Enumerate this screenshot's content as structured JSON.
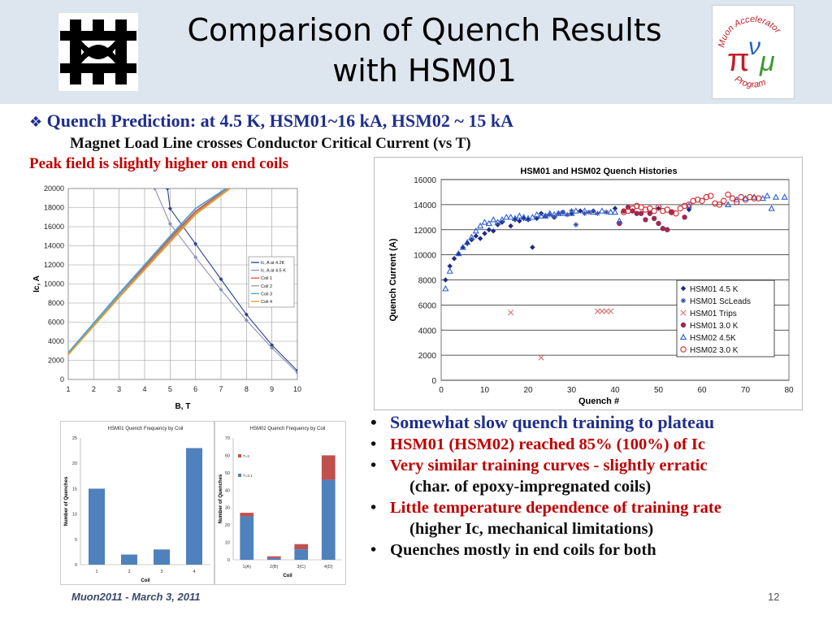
{
  "slide": {
    "title_line1": "Comparison of Quench Results",
    "title_line2": "with HSM01",
    "logo_right_text": {
      "top": "Muon Accelerator",
      "bottom": "Program",
      "pi": "π",
      "mu": "μ",
      "nu": "ν"
    },
    "bullet_main": "Quench Prediction: at 4.5 K, HSM01~16 kA, HSM02 ~ 15 kA",
    "bullet_sub": "Magnet Load Line crosses Conductor Critical Current (vs T)",
    "peak_note": "Peak field is slightly higher on end coils",
    "footer_left": "Muon2011  -  March 3, 2011",
    "page_number": "12",
    "bullets": [
      {
        "text": "Somewhat slow quench training to plateau",
        "color": "#1f2f8c",
        "indent": false
      },
      {
        "text": "HSM01 (HSM02) reached 85% (100%) of Ic",
        "color": "#c00000",
        "indent": false
      },
      {
        "text": "Very similar training curves - slightly erratic",
        "color": "#c00000",
        "indent": false
      },
      {
        "text": "(char. of epoxy-impregnated coils)",
        "color": "#111111",
        "indent": true
      },
      {
        "text": "Little temperature dependence of training rate",
        "color": "#c00000",
        "indent": false
      },
      {
        "text": "(higher Ic, mechanical limitations)",
        "color": "#111111",
        "indent": true
      },
      {
        "text": "Quenches mostly in end coils for both",
        "color": "#111111",
        "indent": false
      }
    ]
  },
  "chart_data": [
    {
      "type": "line",
      "title": "",
      "xlabel": "B, T",
      "ylabel": "Ic, A",
      "xlim": [
        1,
        10
      ],
      "ylim": [
        0,
        20000
      ],
      "xticks": [
        "1",
        "2",
        "3",
        "4",
        "5",
        "6",
        "7",
        "8",
        "9",
        "10"
      ],
      "yticks": [
        "0",
        "2000",
        "4000",
        "6000",
        "8000",
        "10000",
        "12000",
        "14000",
        "16000",
        "18000",
        "20000"
      ],
      "grid": true,
      "legend_position": "right",
      "series": [
        {
          "name": "Ic, A at 4.2K",
          "color": "#2b3f8f",
          "x": [
            4.9,
            5.0,
            6.0,
            7.0,
            8.0,
            9.0,
            10.0
          ],
          "y": [
            20000,
            17900,
            14200,
            10500,
            6800,
            3600,
            900
          ]
        },
        {
          "name": "Ic, A at 4.5 K",
          "color": "#8b8fb8",
          "x": [
            4.4,
            5.0,
            6.0,
            7.0,
            8.0,
            9.0,
            10.0
          ],
          "y": [
            20000,
            16300,
            12800,
            9400,
            6200,
            3300,
            700
          ]
        },
        {
          "name": "Coil 1",
          "color": "#e2502b",
          "x": [
            1,
            2,
            3,
            4,
            5,
            6,
            7.25
          ],
          "y": [
            2700,
            5800,
            8900,
            11800,
            14800,
            17600,
            20000
          ]
        },
        {
          "name": "Coil 2",
          "color": "#9a9a9a",
          "x": [
            1,
            2,
            3,
            4,
            5,
            6,
            7.3
          ],
          "y": [
            2700,
            5700,
            8800,
            11600,
            14600,
            17400,
            20000
          ]
        },
        {
          "name": "Coil 3",
          "color": "#4aa3d8",
          "x": [
            1,
            2,
            3,
            4,
            5,
            6,
            7.2
          ],
          "y": [
            2800,
            5900,
            9000,
            12000,
            15000,
            17900,
            20000
          ]
        },
        {
          "name": "Coil 4",
          "color": "#e49a2b",
          "x": [
            1,
            2,
            3,
            4,
            5,
            6,
            7.35
          ],
          "y": [
            2600,
            5600,
            8600,
            11500,
            14400,
            17300,
            20000
          ]
        }
      ]
    },
    {
      "type": "scatter",
      "title": "HSM01 and HSM02 Quench Histories",
      "xlabel": "Quench #",
      "ylabel": "Quench Current (A)",
      "xlim": [
        0,
        80
      ],
      "ylim": [
        0,
        16000
      ],
      "xticks": [
        "0",
        "10",
        "20",
        "30",
        "40",
        "50",
        "60",
        "70",
        "80"
      ],
      "yticks": [
        "0",
        "2000",
        "4000",
        "6000",
        "8000",
        "10000",
        "12000",
        "14000",
        "16000"
      ],
      "grid": true,
      "legend_position": "bottom-right",
      "series": [
        {
          "name": "HSM01 4.5 K",
          "color": "#1f2a80",
          "marker": "diamond",
          "x": [
            1,
            2,
            3,
            4,
            5,
            6,
            7,
            8,
            9,
            10,
            11,
            12,
            13,
            14,
            16,
            17,
            18,
            19,
            20,
            21,
            22,
            23,
            24,
            26,
            28,
            30,
            32,
            35,
            40,
            50,
            57
          ],
          "y": [
            8000,
            9100,
            9700,
            10100,
            10600,
            10900,
            11200,
            11500,
            11300,
            11700,
            12000,
            11900,
            12400,
            12600,
            12300,
            12800,
            12700,
            12900,
            12800,
            10600,
            12900,
            13300,
            13100,
            13000,
            13400,
            13300,
            13500,
            13500,
            13700,
            13700,
            13600
          ]
        },
        {
          "name": "HSM01 ScLeads",
          "color": "#3a4aa0",
          "marker": "star",
          "x": [
            24,
            25,
            26,
            27,
            28,
            29,
            30,
            31,
            33,
            34,
            36,
            38
          ],
          "y": [
            13100,
            13200,
            13000,
            13300,
            13400,
            13200,
            13500,
            12400,
            13300,
            13400,
            13300,
            13400
          ]
        },
        {
          "name": "HSM01 Trips",
          "color": "#e06060",
          "marker": "x",
          "x": [
            16,
            23,
            36,
            37,
            38,
            39
          ],
          "y": [
            5400,
            1800,
            5500,
            5500,
            5500,
            5500
          ]
        },
        {
          "name": "HSM01 3.0 K",
          "color": "#9a2a55",
          "marker": "circle",
          "x": [
            41,
            42,
            43,
            44,
            45,
            46,
            47,
            48,
            49,
            50,
            51,
            52,
            53,
            56
          ],
          "y": [
            12500,
            13500,
            13800,
            13500,
            13300,
            13300,
            12800,
            13300,
            12900,
            12500,
            12100,
            12000,
            13400,
            13000
          ]
        },
        {
          "name": "HSM02 4.5K",
          "color": "#2d5fd0",
          "marker": "triangle",
          "x": [
            1,
            2,
            4,
            5,
            6,
            7,
            8,
            9,
            10,
            11,
            12,
            13,
            14,
            15,
            16,
            17,
            18,
            19,
            20,
            21,
            22,
            23,
            24,
            25,
            26,
            27,
            28,
            30,
            31,
            33,
            35,
            37,
            39,
            40,
            41,
            57,
            66,
            68,
            70,
            72,
            74,
            75,
            76,
            77,
            79
          ],
          "y": [
            7300,
            8700,
            10100,
            10600,
            11000,
            11400,
            11900,
            12300,
            12600,
            12500,
            12800,
            12600,
            12800,
            13000,
            13000,
            12900,
            13100,
            13000,
            12900,
            13000,
            13200,
            13100,
            13100,
            13300,
            13200,
            13300,
            13300,
            13300,
            13500,
            13500,
            13400,
            13500,
            13400,
            13400,
            12700,
            13900,
            14000,
            14400,
            14500,
            14600,
            14500,
            14700,
            13700,
            14600,
            14600
          ]
        },
        {
          "name": "HSM02 3.0 K",
          "color": "#d0282f",
          "marker": "circle-open",
          "x": [
            42,
            43,
            44,
            45,
            46,
            47,
            48,
            49,
            50,
            51,
            52,
            53,
            54,
            55,
            56,
            57,
            58,
            59,
            60,
            61,
            62,
            63,
            64,
            65,
            66,
            67,
            68,
            69,
            70,
            71,
            72,
            73
          ],
          "y": [
            13400,
            13500,
            13700,
            13900,
            13800,
            13600,
            13700,
            13500,
            13800,
            13500,
            13600,
            13400,
            13300,
            13700,
            13900,
            14000,
            14300,
            14400,
            14300,
            14600,
            14700,
            14100,
            14000,
            14300,
            14800,
            14500,
            14200,
            14600,
            14400,
            14600,
            14500,
            14500
          ]
        }
      ]
    },
    {
      "type": "bar",
      "title": "HSM01 Quench Frequency by Coil",
      "xlabel": "Coil",
      "ylabel": "Number of Quenches",
      "ylim": [
        0,
        25
      ],
      "categories": [
        "1",
        "2",
        "3",
        "4"
      ],
      "yticks": [
        "0",
        "5",
        "10",
        "15",
        "20",
        "25"
      ],
      "color": "#4f81bd",
      "values": [
        15,
        2,
        3,
        23
      ]
    },
    {
      "type": "bar",
      "title": "HSM02 Quench Frequency by Coil",
      "xlabel": "Coil",
      "ylabel": "Number of Quenches",
      "ylim": [
        0,
        70
      ],
      "categories": [
        "1(A)",
        "2(B)",
        "3(C)",
        "4(D)"
      ],
      "yticks": [
        "0",
        "10",
        "20",
        "30",
        "40",
        "50",
        "60",
        "70"
      ],
      "stacked": true,
      "series": [
        {
          "name": "T=3.1",
          "color": "#4f81bd",
          "values": [
            25,
            1,
            6,
            46
          ]
        },
        {
          "name": "T=2",
          "color": "#c0504d",
          "values": [
            2,
            1,
            3,
            14
          ]
        }
      ]
    }
  ]
}
